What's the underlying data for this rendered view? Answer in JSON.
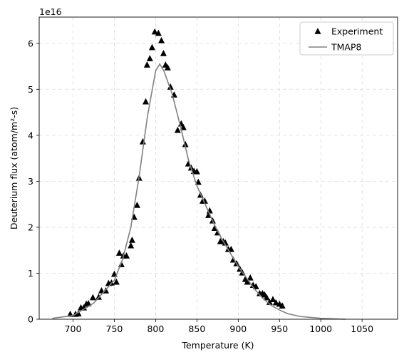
{
  "chart_data": {
    "type": "scatter",
    "offset_text": "1e16",
    "xlabel": "Temperature (K)",
    "ylabel": "Deuterium flux (atom/m²-s)",
    "xlim": [
      659,
      1093
    ],
    "ylim": [
      0,
      6.57
    ],
    "xticks": [
      700,
      750,
      800,
      850,
      900,
      950,
      1000,
      1050
    ],
    "yticks": [
      0,
      1,
      2,
      3,
      4,
      5,
      6
    ],
    "grid": true,
    "legend": "upper right",
    "series": [
      {
        "name": "Experiment",
        "type": "scatter",
        "color": "#000000",
        "x": [
          696.6,
          703,
          706.5,
          709.5,
          713,
          716,
          718.6,
          724,
          731,
          734.5,
          739.7,
          743,
          746.5,
          750,
          752.5,
          756,
          758.6,
          761,
          764.7,
          770,
          771.5,
          774,
          777.6,
          780,
          784.5,
          788,
          789.6,
          793,
          795.7,
          799,
          803.4,
          807,
          809.5,
          812,
          814.6,
          818,
          822.4,
          826.7,
          831,
          833.6,
          836,
          839.6,
          843,
          846.5,
          850,
          851.7,
          854.3,
          857,
          859.5,
          864,
          865.5,
          869,
          871.5,
          875,
          878.4,
          881.9,
          884.5,
          888,
          891.4,
          894,
          898,
          902,
          905,
          908.6,
          911,
          914.6,
          918,
          921.5,
          926,
          929.4,
          932,
          934.5,
          938,
          942,
          945.7,
          950,
          953.4
        ],
        "values": [
          0.11,
          0.11,
          0.12,
          0.25,
          0.25,
          0.33,
          0.34,
          0.47,
          0.48,
          0.62,
          0.62,
          0.78,
          0.79,
          0.98,
          0.81,
          1.44,
          1.19,
          1.38,
          1.38,
          1.6,
          1.72,
          2.22,
          2.48,
          3.07,
          3.86,
          4.73,
          5.53,
          5.67,
          5.91,
          6.25,
          6.22,
          6.06,
          5.78,
          5.53,
          5.47,
          5.05,
          4.88,
          4.11,
          4.25,
          4.17,
          3.8,
          3.38,
          3.29,
          3.22,
          3.21,
          2.98,
          2.7,
          2.57,
          2.57,
          2.26,
          2.36,
          2.14,
          1.98,
          1.88,
          1.69,
          1.69,
          1.66,
          1.52,
          1.52,
          1.29,
          1.21,
          1.09,
          1.01,
          0.87,
          0.81,
          0.9,
          0.74,
          0.71,
          0.56,
          0.56,
          0.53,
          0.47,
          0.37,
          0.43,
          0.36,
          0.33,
          0.29
        ]
      },
      {
        "name": "TMAP8",
        "type": "line",
        "color": "#808080",
        "x": [
          675,
          700,
          725,
          750,
          760,
          770,
          780,
          790,
          800,
          805,
          810,
          820,
          830,
          840,
          850,
          860,
          870,
          880,
          890,
          900,
          910,
          920,
          930,
          940,
          950,
          960,
          975,
          1000,
          1030
        ],
        "values": [
          0.02,
          0.08,
          0.35,
          0.85,
          1.3,
          2.0,
          3.1,
          4.4,
          5.4,
          5.55,
          5.4,
          4.9,
          4.2,
          3.45,
          2.9,
          2.5,
          2.1,
          1.75,
          1.45,
          1.15,
          0.9,
          0.65,
          0.45,
          0.3,
          0.2,
          0.12,
          0.06,
          0.02,
          0.0
        ]
      }
    ]
  }
}
